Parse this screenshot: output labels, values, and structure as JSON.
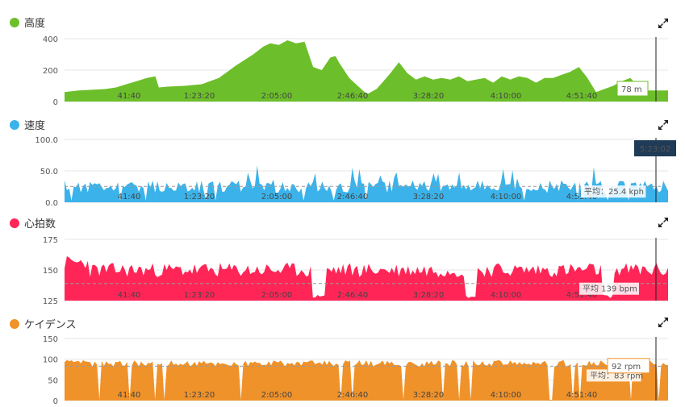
{
  "cursor_time": "5:23:02",
  "colors": {
    "altitude": "#6cbf2a",
    "speed": "#3bb3ea",
    "heart_rate": "#ff2657",
    "cadence": "#f0922a",
    "grid": "#e6e6e6",
    "avg_line": "#999999",
    "cursor_badge": "#1f3b57"
  },
  "chart_data": [
    {
      "type": "area",
      "title": "高度",
      "color": "#6cbf2a",
      "y_ticks": [
        "400",
        "200",
        "0"
      ],
      "ylim": [
        0,
        400
      ],
      "x_ticks": [
        "41:40",
        "1:23:20",
        "2:05:00",
        "2:46:40",
        "3:28:20",
        "4:10:00",
        "4:51:40"
      ],
      "xlim_minutes": [
        0,
        352
      ],
      "series": [
        {
          "x": [
            0,
            8,
            16,
            24,
            30,
            36,
            42,
            48,
            53,
            55,
            60,
            70,
            80,
            90,
            100,
            110,
            116,
            120,
            125,
            130,
            135,
            140,
            145,
            150,
            155,
            158,
            160,
            163,
            166,
            169,
            171,
            173,
            175,
            177,
            182,
            186,
            190,
            195,
            200,
            205,
            210,
            215,
            220,
            225,
            230,
            235,
            240,
            245,
            250,
            255,
            260,
            265,
            270,
            275,
            280,
            285,
            290,
            295,
            300,
            305,
            310,
            315,
            320,
            325,
            330,
            335,
            340,
            345,
            352
          ],
          "y": [
            60,
            70,
            75,
            80,
            90,
            110,
            130,
            150,
            160,
            90,
            95,
            100,
            110,
            150,
            230,
            300,
            350,
            370,
            360,
            390,
            370,
            380,
            220,
            200,
            280,
            290,
            250,
            200,
            150,
            120,
            100,
            80,
            60,
            50,
            80,
            130,
            180,
            250,
            180,
            140,
            160,
            140,
            150,
            140,
            160,
            130,
            140,
            150,
            120,
            160,
            140,
            160,
            150,
            120,
            150,
            150,
            170,
            190,
            220,
            150,
            60,
            80,
            100,
            130,
            150,
            90,
            70,
            70,
            70
          ]
        }
      ],
      "tooltip": "78 m"
    },
    {
      "type": "area",
      "title": "速度",
      "color": "#3bb3ea",
      "y_ticks": [
        "100.0",
        "50.0",
        "0.0"
      ],
      "ylim": [
        0,
        100
      ],
      "avg": 25.4,
      "avg_label": "平均：25.4 kph",
      "x_ticks": [
        "41:40",
        "1:23:20",
        "2:05:00",
        "2:46:40",
        "3:28:20",
        "4:10:00",
        "4:51:40"
      ],
      "series": [
        {
          "name": "速度",
          "seed": 11,
          "base": 25,
          "amp": 10,
          "spike_max": 60
        }
      ]
    },
    {
      "type": "area",
      "title": "心拍数",
      "color": "#ff2657",
      "y_ticks": [
        "175",
        "150",
        "125"
      ],
      "ylim": [
        125,
        175
      ],
      "avg": 139,
      "avg_label": "平均 139 bpm",
      "x_ticks": [
        "41:40",
        "1:23:20",
        "2:05:00",
        "2:46:40",
        "3:28:20",
        "4:10:00",
        "4:51:40"
      ],
      "series": [
        {
          "name": "心拍数",
          "seed": 23,
          "base": 150,
          "amp": 6,
          "spike_max": 0
        }
      ]
    },
    {
      "type": "area",
      "title": "ケイデンス",
      "color": "#f0922a",
      "y_ticks": [
        "150",
        "100",
        "50",
        "0"
      ],
      "ylim": [
        0,
        150
      ],
      "avg": 83,
      "avg_label": "平均：83 rpm",
      "x_ticks": [
        "41:40",
        "1:23:20",
        "2:05:00",
        "2:46:40",
        "3:28:20",
        "4:10:00",
        "4:51:40"
      ],
      "series": [
        {
          "name": "ケイデンス",
          "seed": 37,
          "base": 90,
          "amp": 8,
          "spike_max": 0
        }
      ],
      "tooltip": "92 rpm"
    }
  ]
}
